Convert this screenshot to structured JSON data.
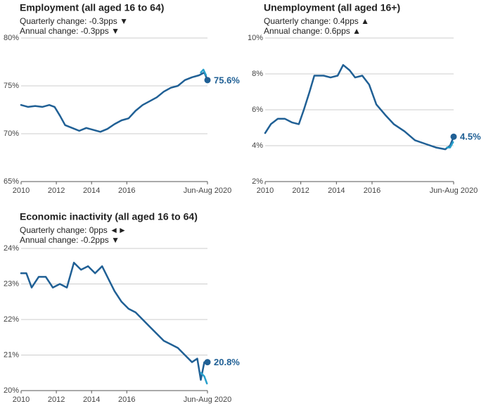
{
  "chart_data": [
    {
      "type": "line",
      "title": "Employment (all aged 16 to 64)",
      "annotations": [
        "Quarterly change: -0.3pps ▼",
        "Annual change: -0.3pps ▼"
      ],
      "xlim": [
        2010,
        2020.58
      ],
      "xticks": [
        2010,
        2012,
        2014,
        2016,
        {
          "value": 2020.58,
          "label": "Jun-Aug 2020"
        }
      ],
      "ylim": [
        65,
        80
      ],
      "yticks": [
        {
          "value": 65,
          "label": "65%"
        },
        {
          "value": 70,
          "label": "70%"
        },
        {
          "value": 75,
          "label": "75%"
        },
        {
          "value": 80,
          "label": "80%"
        }
      ],
      "grid": true,
      "series": [
        {
          "color": "#206095",
          "x": [
            2010,
            2010.4,
            2010.8,
            2011.2,
            2011.6,
            2011.9,
            2012.2,
            2012.5,
            2012.9,
            2013.3,
            2013.7,
            2014.1,
            2014.5,
            2014.9,
            2015.3,
            2015.7,
            2016.1,
            2016.5,
            2016.9,
            2017.3,
            2017.7,
            2018.1,
            2018.5,
            2018.9,
            2019.3,
            2019.7,
            2020.1,
            2020.4,
            2020.58
          ],
          "values": [
            73.0,
            72.8,
            72.9,
            72.8,
            73.0,
            72.8,
            71.9,
            70.9,
            70.6,
            70.3,
            70.6,
            70.4,
            70.2,
            70.5,
            71.0,
            71.4,
            71.6,
            72.4,
            73.0,
            73.4,
            73.8,
            74.4,
            74.8,
            75.0,
            75.6,
            75.9,
            76.1,
            76.4,
            75.6
          ]
        },
        {
          "color": "#27a0cc",
          "x": [
            2020.2,
            2020.35,
            2020.5
          ],
          "values": [
            76.4,
            76.7,
            76.1
          ]
        },
        {
          "color": "#206095",
          "x": [
            2020.58
          ],
          "values": [
            75.6
          ],
          "value_labels": [
            "75.6%"
          ]
        }
      ]
    },
    {
      "type": "line",
      "title": "Unemployment (all aged 16+)",
      "annotations": [
        "Quarterly change: 0.4pps ▲",
        "Annual change: 0.6pps ▲"
      ],
      "xlim": [
        2010,
        2020.58
      ],
      "xticks": [
        2010,
        2012,
        2014,
        2016,
        {
          "value": 2020.58,
          "label": "Jun-Aug 2020"
        }
      ],
      "ylim": [
        2,
        10
      ],
      "yticks": [
        {
          "value": 2,
          "label": "2%"
        },
        {
          "value": 4,
          "label": "4%"
        },
        {
          "value": 6,
          "label": "6%"
        },
        {
          "value": 8,
          "label": "8%"
        },
        {
          "value": 10,
          "label": "10%"
        }
      ],
      "grid": true,
      "series": [
        {
          "color": "#206095",
          "x": [
            2010,
            2010.32,
            2010.71,
            2011.11,
            2011.5,
            2011.89,
            2012.17,
            2012.49,
            2012.76,
            2013.28,
            2013.67,
            2014.07,
            2014.38,
            2014.74,
            2015.05,
            2015.45,
            2015.84,
            2016.24,
            2016.75,
            2017.22,
            2017.82,
            2018.41,
            2019.0,
            2019.59,
            2020.11,
            2020.38,
            2020.58
          ],
          "values": [
            4.7,
            5.2,
            5.5,
            5.5,
            5.3,
            5.2,
            6.0,
            7.0,
            7.9,
            7.9,
            7.8,
            7.9,
            8.5,
            8.2,
            7.8,
            7.9,
            7.4,
            6.3,
            5.7,
            5.2,
            4.8,
            4.3,
            4.1,
            3.9,
            3.8,
            4.0,
            4.5
          ]
        },
        {
          "color": "#27a0cc",
          "x": [
            2020.2,
            2020.38,
            2020.55
          ],
          "values": [
            3.9,
            3.9,
            4.2
          ]
        },
        {
          "color": "#206095",
          "x": [
            2020.58
          ],
          "values": [
            4.5
          ],
          "value_labels": [
            "4.5%"
          ]
        }
      ]
    },
    {
      "type": "line",
      "title": "Economic inactivity (all aged 16 to 64)",
      "annotations": [
        "Quarterly change: 0pps ◄►",
        "Annual change: -0.2pps ▼"
      ],
      "xlim": [
        2010,
        2020.58
      ],
      "xticks": [
        2010,
        2012,
        2014,
        2016,
        {
          "value": 2020.58,
          "label": "Jun-Aug 2020"
        }
      ],
      "ylim": [
        20,
        24
      ],
      "yticks": [
        {
          "value": 20,
          "label": "20%"
        },
        {
          "value": 21,
          "label": "21%"
        },
        {
          "value": 22,
          "label": "22%"
        },
        {
          "value": 23,
          "label": "23%"
        },
        {
          "value": 24,
          "label": "24%"
        }
      ],
      "grid": true,
      "series": [
        {
          "color": "#206095",
          "x": [
            2010,
            2010.3,
            2010.6,
            2011,
            2011.4,
            2011.8,
            2012.2,
            2012.6,
            2013.0,
            2013.4,
            2013.8,
            2014.2,
            2014.6,
            2015.0,
            2015.3,
            2015.7,
            2016.1,
            2016.5,
            2016.9,
            2017.3,
            2017.7,
            2018.1,
            2018.5,
            2018.9,
            2019.3,
            2019.7,
            2020.0,
            2020.2,
            2020.4,
            2020.58
          ],
          "values": [
            23.3,
            23.3,
            22.9,
            23.2,
            23.2,
            22.9,
            23.0,
            22.9,
            23.6,
            23.4,
            23.5,
            23.3,
            23.5,
            23.1,
            22.8,
            22.5,
            22.3,
            22.2,
            22.0,
            21.8,
            21.6,
            21.4,
            21.3,
            21.2,
            21.0,
            20.8,
            20.9,
            20.3,
            20.8,
            20.8
          ]
        },
        {
          "color": "#27a0cc",
          "x": [
            2020.2,
            2020.4,
            2020.55
          ],
          "values": [
            20.5,
            20.4,
            20.2
          ]
        },
        {
          "color": "#206095",
          "x": [
            2020.58
          ],
          "values": [
            20.8
          ],
          "value_labels": [
            "20.8%"
          ]
        }
      ]
    }
  ]
}
